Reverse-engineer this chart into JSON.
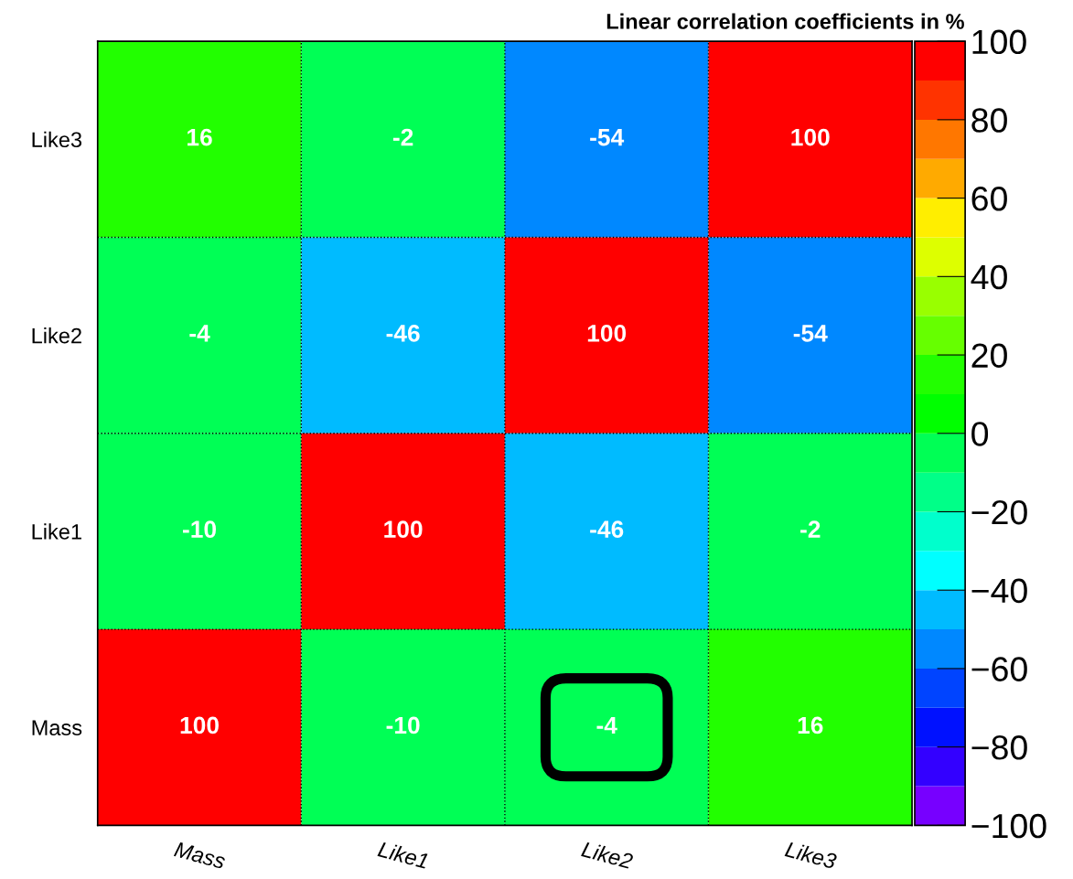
{
  "chart_data": {
    "type": "heatmap",
    "title": "Linear correlation coefficients in %",
    "categories": [
      "Mass",
      "Like1",
      "Like2",
      "Like3"
    ],
    "y_categories": [
      "Like3",
      "Like2",
      "Like1",
      "Mass"
    ],
    "cells": [
      [
        16,
        -2,
        -54,
        100
      ],
      [
        -4,
        -46,
        100,
        -54
      ],
      [
        -10,
        100,
        -46,
        -2
      ],
      [
        100,
        -10,
        -4,
        16
      ]
    ],
    "data_labels": true,
    "grid": true,
    "clim": [
      -100,
      100
    ],
    "cticks": [
      {
        "value": -100,
        "label": "−100"
      },
      {
        "value": -80,
        "label": "−80"
      },
      {
        "value": -60,
        "label": "−60"
      },
      {
        "value": -40,
        "label": "−40"
      },
      {
        "value": -20,
        "label": "−20"
      },
      0,
      20,
      40,
      60,
      80,
      100
    ]
  }
}
